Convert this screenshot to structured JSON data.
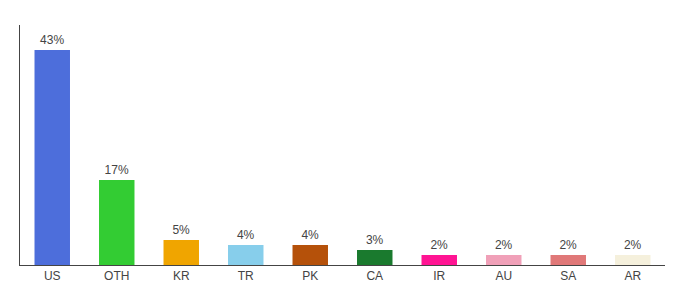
{
  "chart_data": {
    "type": "bar",
    "categories": [
      "US",
      "OTH",
      "KR",
      "TR",
      "PK",
      "CA",
      "IR",
      "AU",
      "SA",
      "AR"
    ],
    "values": [
      43,
      17,
      5,
      4,
      4,
      3,
      2,
      2,
      2,
      2
    ],
    "value_labels": [
      "43%",
      "17%",
      "5%",
      "4%",
      "4%",
      "3%",
      "2%",
      "2%",
      "2%",
      "2%"
    ],
    "colors": [
      "#4d6edb",
      "#33cc33",
      "#f0a500",
      "#87ceeb",
      "#b5510a",
      "#1a7a2e",
      "#ff1493",
      "#f0a0b8",
      "#e07878",
      "#f5f0dc"
    ],
    "ylim": [
      0,
      48
    ],
    "data_labels": true,
    "tick_labels": "x",
    "grid": false
  }
}
